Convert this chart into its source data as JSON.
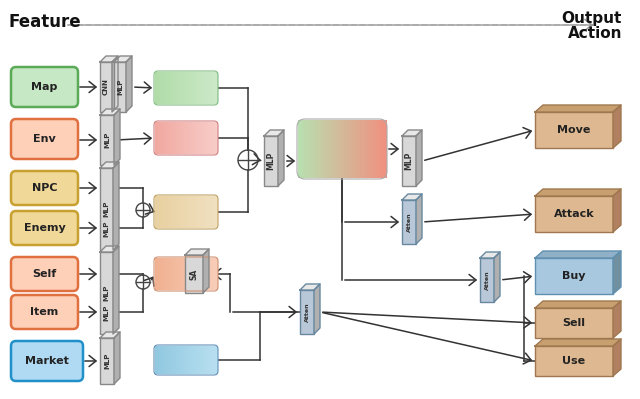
{
  "bg_color": "#ffffff",
  "title_left": "Feature",
  "title_right": "Output\nAction",
  "input_labels": [
    "Map",
    "Env",
    "NPC",
    "Enemy",
    "Self",
    "Item",
    "Market"
  ],
  "output_labels": [
    "Move",
    "Attack",
    "Buy",
    "Sell",
    "Use"
  ]
}
